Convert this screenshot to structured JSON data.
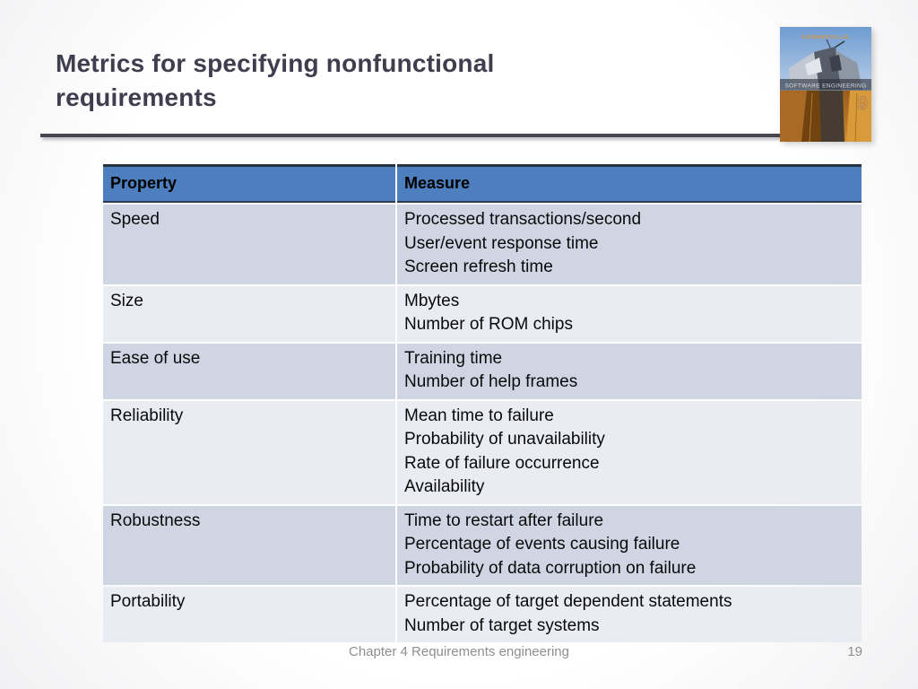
{
  "slide": {
    "title_line1": "Metrics for specifying nonfunctional",
    "title_line2": "requirements",
    "footer": "Chapter 4 Requirements engineering",
    "page_number": "19"
  },
  "book_cover": {
    "author": "SOMMERVILLE",
    "title": "SOFTWARE ENGINEERING",
    "edition": "9"
  },
  "table": {
    "headers": [
      "Property",
      "Measure"
    ],
    "rows": [
      {
        "property": "Speed",
        "measures": [
          "Processed transactions/second",
          "User/event response time",
          "Screen refresh time"
        ]
      },
      {
        "property": "Size",
        "measures": [
          "Mbytes",
          "Number of ROM chips"
        ]
      },
      {
        "property": "Ease of use",
        "measures": [
          "Training time",
          "Number of help frames"
        ]
      },
      {
        "property": "Reliability",
        "measures": [
          "Mean time to failure",
          "Probability of unavailability",
          "Rate of failure occurrence",
          "Availability"
        ]
      },
      {
        "property": "Robustness",
        "measures": [
          "Time to restart after failure",
          "Percentage of events causing failure",
          "Probability of data corruption on failure"
        ]
      },
      {
        "property": "Portability",
        "measures": [
          "Percentage of target dependent statements",
          "Number of target systems"
        ]
      }
    ]
  },
  "colors": {
    "header_bg": "#4d7ebd",
    "row_dark": "#cfd5e3",
    "row_light": "#eaecf4",
    "title_text": "#3e3e4e",
    "footer_text": "#8e8e8e",
    "rule": "#46464e",
    "cover_accent_orange": "#e8912b"
  }
}
